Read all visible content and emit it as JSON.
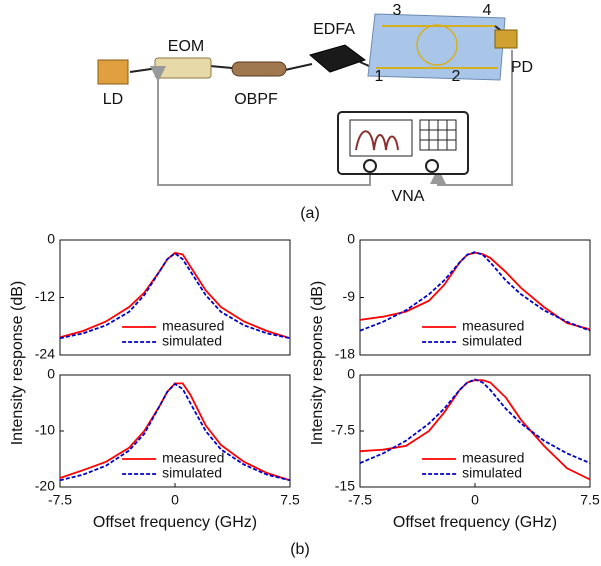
{
  "diagram": {
    "labels": {
      "ld": "LD",
      "eom": "EOM",
      "obpf": "OBPF",
      "edfa": "EDFA",
      "port3": "3",
      "port4": "4",
      "port1": "1",
      "port2": "2",
      "pd": "PD",
      "vna": "VNA"
    },
    "caption": "(a)"
  },
  "figure": {
    "y_labels": [
      "Intensity response (dB)",
      "Intensity response (dB)"
    ],
    "x_labels": [
      "Offset frequency (GHz)",
      "Offset frequency (GHz)"
    ],
    "caption": "(b)"
  },
  "chart_data": [
    {
      "type": "line",
      "x": [
        -7.5,
        -6,
        -4.5,
        -3,
        -2,
        -1,
        -0.5,
        0,
        0.5,
        1,
        2,
        3,
        4.5,
        6,
        7.5
      ],
      "series": [
        {
          "name": "measured",
          "color": "#ff0000",
          "style": "solid",
          "values": [
            -20.3,
            -19,
            -17,
            -14,
            -11,
            -6.5,
            -4,
            -2.7,
            -3,
            -5.5,
            -10.5,
            -14,
            -17,
            -19,
            -20.5
          ]
        },
        {
          "name": "simulated",
          "color": "#0000cc",
          "style": "dashed",
          "values": [
            -20.5,
            -19.5,
            -17.8,
            -15,
            -11.5,
            -6.5,
            -4,
            -2.8,
            -4,
            -6.5,
            -11.5,
            -15,
            -17.8,
            -19.5,
            -20.5
          ]
        }
      ],
      "xlim": [
        -7.5,
        7.5
      ],
      "ylim": [
        -24,
        0
      ],
      "yticks": [
        0,
        -12,
        -24
      ],
      "legend": "lower center"
    },
    {
      "type": "line",
      "x": [
        -7.5,
        -6,
        -4.5,
        -3,
        -2,
        -1,
        -0.5,
        0,
        0.5,
        1,
        2,
        3,
        4.5,
        6,
        7.5
      ],
      "series": [
        {
          "name": "measured",
          "color": "#ff0000",
          "style": "solid",
          "values": [
            -12.5,
            -12,
            -11.2,
            -9.5,
            -7,
            -3.5,
            -2.3,
            -2,
            -2.2,
            -2.8,
            -5,
            -7.5,
            -10.5,
            -13,
            -14
          ]
        },
        {
          "name": "simulated",
          "color": "#0000cc",
          "style": "dashed",
          "values": [
            -14.2,
            -12.8,
            -11,
            -8.5,
            -6.3,
            -3.5,
            -2.3,
            -1.9,
            -2.3,
            -3.5,
            -6.3,
            -8.5,
            -11,
            -12.8,
            -14.2
          ]
        }
      ],
      "xlim": [
        -7.5,
        7.5
      ],
      "ylim": [
        -18,
        0
      ],
      "yticks": [
        0,
        -9,
        -18
      ],
      "legend": "lower center"
    },
    {
      "type": "line",
      "x": [
        -7.5,
        -6,
        -4.5,
        -3,
        -2,
        -1,
        -0.5,
        0,
        0.5,
        1,
        2,
        3,
        4.5,
        6,
        7.5
      ],
      "series": [
        {
          "name": "measured",
          "color": "#ff0000",
          "style": "solid",
          "values": [
            -18.4,
            -17,
            -15.5,
            -13,
            -10,
            -5.5,
            -3,
            -1.5,
            -1.5,
            -3.5,
            -9,
            -12.5,
            -15.5,
            -17.5,
            -18.8
          ]
        },
        {
          "name": "simulated",
          "color": "#0000cc",
          "style": "dashed",
          "values": [
            -18.8,
            -17.8,
            -16.2,
            -13.5,
            -10.5,
            -5.5,
            -3,
            -1.6,
            -2.5,
            -5,
            -10,
            -13.3,
            -16,
            -17.8,
            -18.8
          ]
        }
      ],
      "xlim": [
        -7.5,
        7.5
      ],
      "xticks": [
        -7.5,
        0,
        7.5
      ],
      "ylim": [
        -20,
        0
      ],
      "yticks": [
        0,
        -10,
        -20
      ],
      "legend": "lower center"
    },
    {
      "type": "line",
      "x": [
        -7.5,
        -6,
        -4.5,
        -3,
        -2,
        -1,
        -0.5,
        0,
        0.5,
        1,
        2,
        3,
        4.5,
        6,
        7.5
      ],
      "series": [
        {
          "name": "measured",
          "color": "#ff0000",
          "style": "solid",
          "values": [
            -10.2,
            -10,
            -9.5,
            -7.5,
            -5,
            -2,
            -1,
            -0.7,
            -0.7,
            -1,
            -3,
            -6,
            -9.5,
            -12.5,
            -14
          ]
        },
        {
          "name": "simulated",
          "color": "#0000cc",
          "style": "dashed",
          "values": [
            -11.8,
            -10.5,
            -8.8,
            -6.5,
            -4.5,
            -2,
            -1,
            -0.6,
            -1,
            -2,
            -4.5,
            -6.5,
            -8.8,
            -10.5,
            -11.8
          ]
        }
      ],
      "xlim": [
        -7.5,
        7.5
      ],
      "xticks": [
        -7.5,
        0,
        7.5
      ],
      "ylim": [
        -15,
        0
      ],
      "yticks": [
        0,
        -7.5,
        -15
      ],
      "legend": "lower center"
    }
  ]
}
